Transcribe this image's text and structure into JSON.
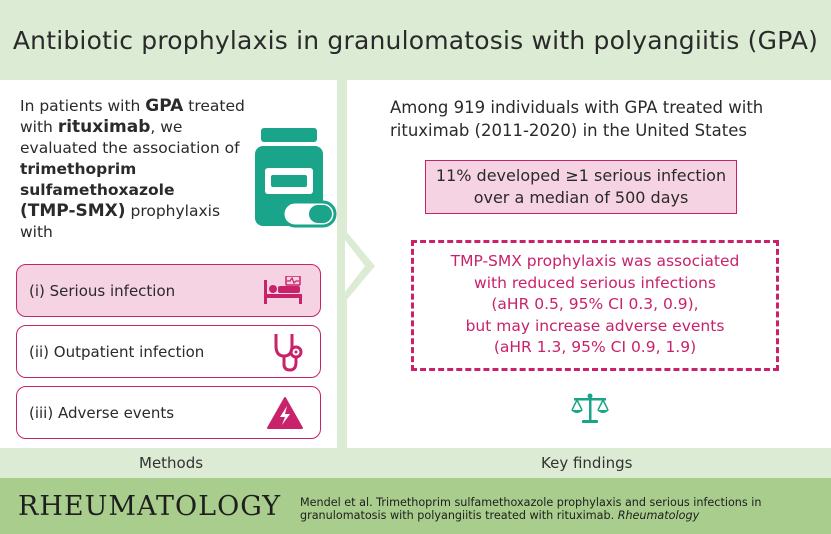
{
  "title": "Antibiotic prophylaxis in granulomatosis with polyangiitis (GPA)",
  "intro": {
    "p1": "In patients with ",
    "gpa": "GPA",
    "p2": " treated",
    "p3": "with ",
    "rituximab": "rituximab",
    "p4": ", we",
    "p5": "evaluated the association of",
    "drug1": "trimethoprim",
    "drug2": "sulfamethoxazole",
    "drug3": "(TMP-SMX)",
    "p6": " prophylaxis",
    "p7": "with"
  },
  "outcomes": [
    {
      "label": "(i)  Serious infection",
      "icon": "hospital-bed-icon"
    },
    {
      "label": "(ii)  Outpatient infection",
      "icon": "stethoscope-icon"
    },
    {
      "label": "(iii)  Adverse events",
      "icon": "warning-lightning-icon"
    }
  ],
  "findings": {
    "intro_line1": "Among 919 individuals with GPA treated with",
    "intro_line2": "rituximab (2011-2020) in the United States",
    "box1_line1": "11% developed ≥1 serious infection",
    "box1_line2": "over a median of 500 days",
    "box2_lines": [
      "TMP-SMX prophylaxis was associated",
      "with reduced serious infections",
      "(aHR 0.5, 95% CI 0.3, 0.9),",
      "but may increase adverse events",
      "(aHR 1.3, 95% CI 0.9, 1.9)"
    ]
  },
  "labels": {
    "methods": "Methods",
    "key_findings": "Key findings"
  },
  "footer": {
    "journal": "RHEUMATOLOGY",
    "citation_main": "Mendel et al. Trimethoprim sulfamethoxazole prophylaxis and serious infections in granulomatosis with polyangiitis treated with rituximab. ",
    "citation_journal": "Rheumatology"
  },
  "colors": {
    "light_green": "#dcecd4",
    "footer_green": "#a8cd8c",
    "teal": "#1aa48a",
    "magenta": "#c8226a",
    "pink_fill": "#f6d3e2"
  }
}
